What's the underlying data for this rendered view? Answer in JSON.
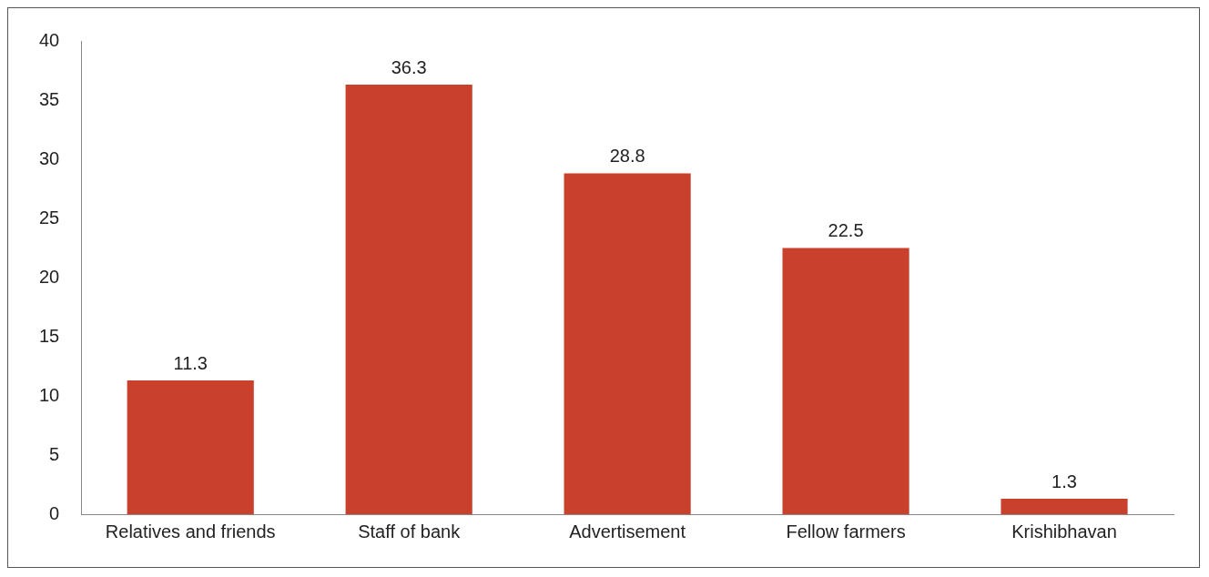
{
  "chart_data": {
    "type": "bar",
    "categories": [
      "Relatives and friends",
      "Staff of bank",
      "Advertisement",
      "Fellow farmers",
      "Krishibhavan"
    ],
    "values": [
      11.3,
      36.3,
      28.8,
      22.5,
      1.3
    ],
    "color": "#c9402c",
    "ylim": [
      0,
      40
    ],
    "yticks": [
      0,
      5,
      10,
      15,
      20,
      25,
      30,
      35,
      40
    ],
    "grid": false,
    "legend": false,
    "data_labels": true
  }
}
